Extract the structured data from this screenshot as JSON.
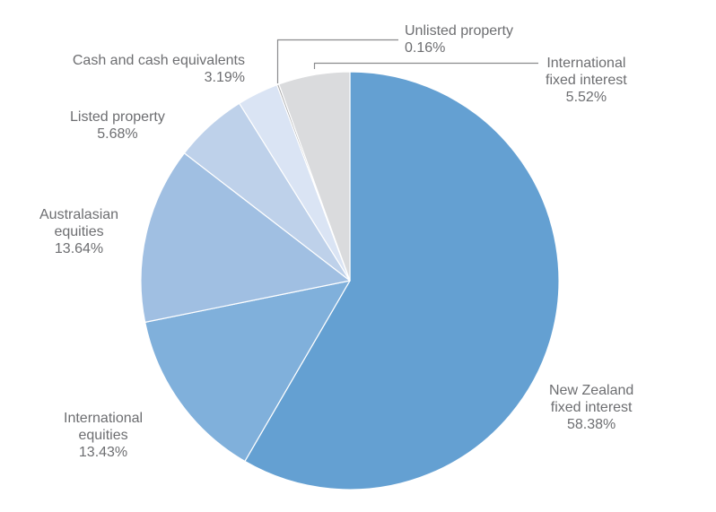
{
  "chart_data": {
    "type": "pie",
    "title": "",
    "start_angle_deg": 0,
    "direction": "clockwise",
    "slices": [
      {
        "label": "New Zealand fixed interest",
        "value": 58.38,
        "display": "58.38%",
        "color": "#64a0d2"
      },
      {
        "label": "International equities",
        "value": 13.43,
        "display": "13.43%",
        "color": "#80b0db"
      },
      {
        "label": "Australasian equities",
        "value": 13.64,
        "display": "13.64%",
        "color": "#a0bfe2"
      },
      {
        "label": "Listed property",
        "value": 5.68,
        "display": "5.68%",
        "color": "#bed1ea"
      },
      {
        "label": "Cash and cash equivalents",
        "value": 3.19,
        "display": "3.19%",
        "color": "#dae4f4"
      },
      {
        "label": "Unlisted property",
        "value": 0.16,
        "display": "0.16%",
        "color": "#a7a8aa"
      },
      {
        "label": "International fixed interest",
        "value": 5.52,
        "display": "5.52%",
        "color": "#dadbdd"
      }
    ],
    "legend": "none (direct labels)",
    "grid": false
  },
  "labels": {
    "nz_fixed": {
      "line1": "New Zealand",
      "line2": "fixed interest",
      "value": "58.38%"
    },
    "intl_equities": {
      "line1": "International",
      "line2": "equities",
      "value": "13.43%"
    },
    "aus_equities": {
      "line1": "Australasian",
      "line2": "equities",
      "value": "13.64%"
    },
    "listed_property": {
      "line1": "Listed property",
      "value": "5.68%"
    },
    "cash": {
      "line1": "Cash and cash equivalents",
      "value": "3.19%"
    },
    "unlisted_property": {
      "line1": "Unlisted property",
      "value": "0.16%"
    },
    "intl_fixed": {
      "line1": "International",
      "line2": "fixed interest",
      "value": "5.52%"
    }
  },
  "style": {
    "label_color": "#6d6e71",
    "leader_color": "#8a8b8d",
    "slice_border": "#ffffff"
  }
}
